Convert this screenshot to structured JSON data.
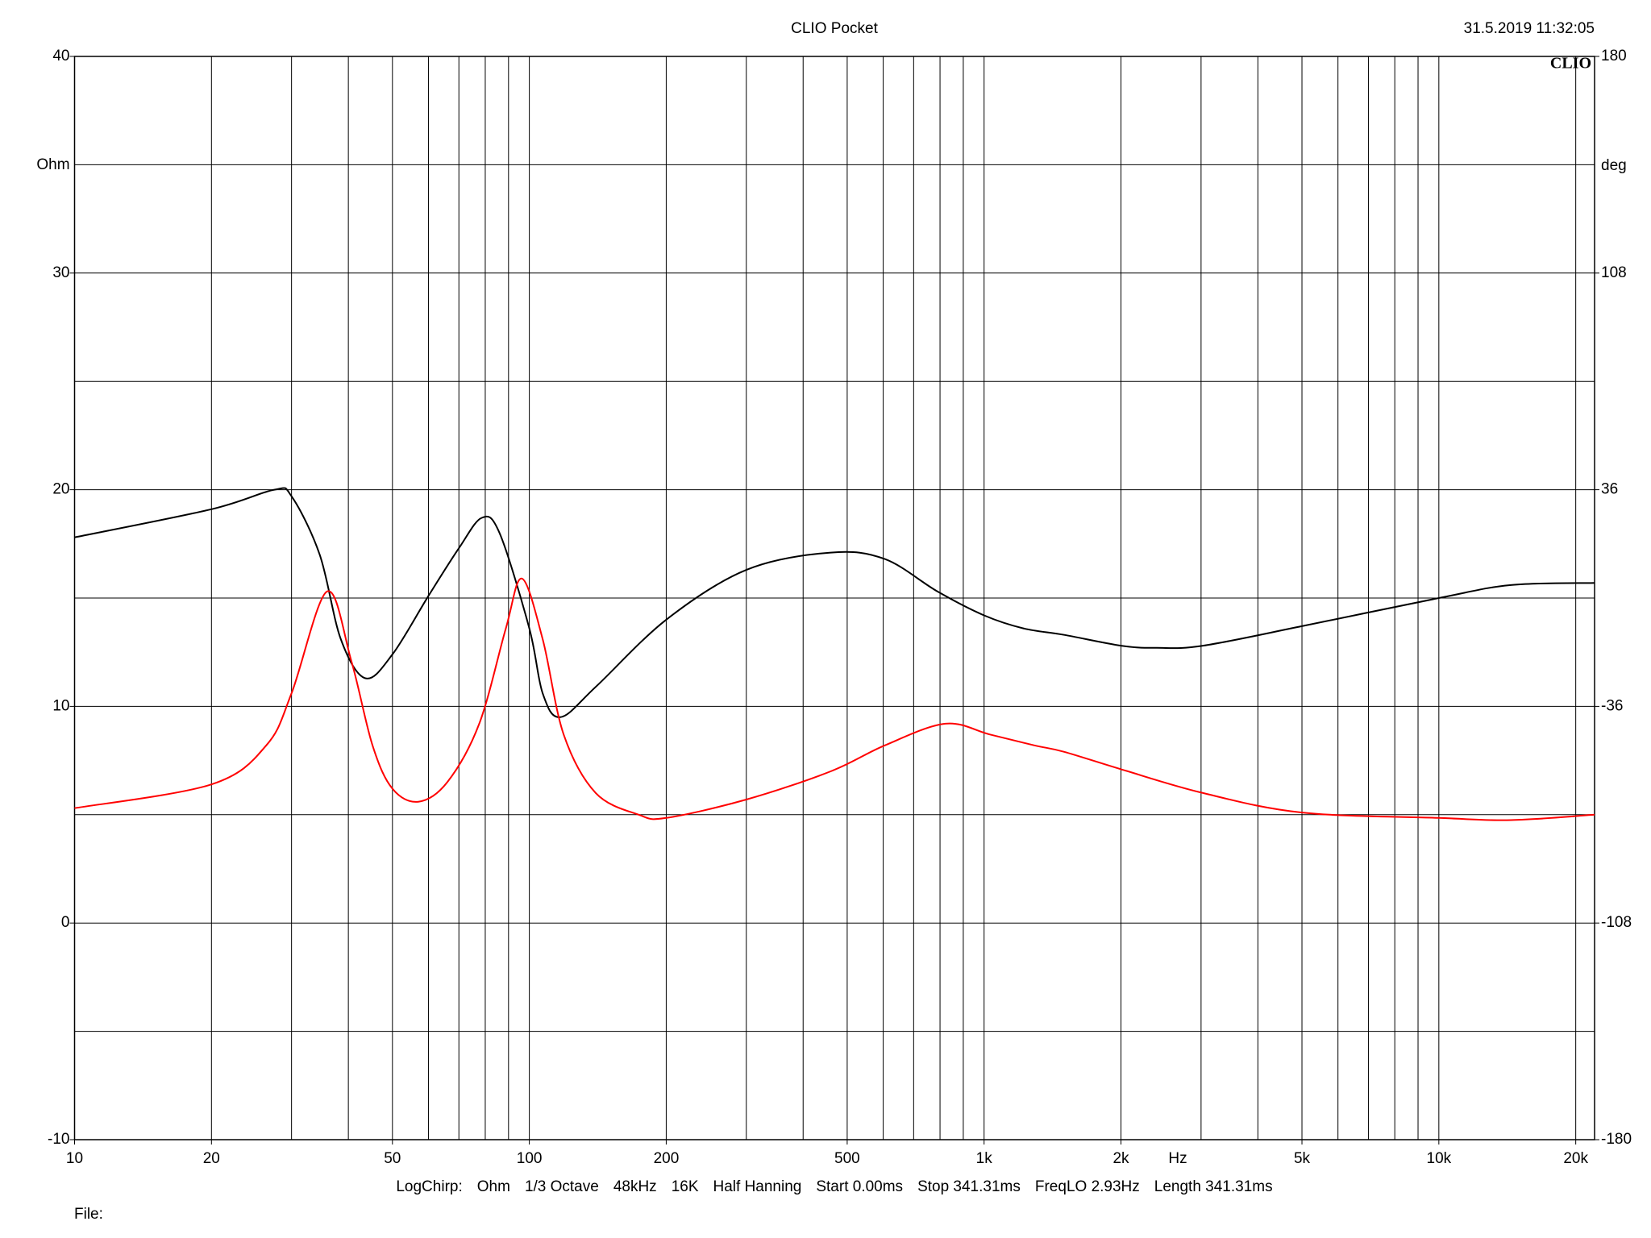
{
  "chart_data": {
    "type": "line",
    "title": "CLIO Pocket",
    "timestamp": "31.5.2019 11:32:05",
    "logo": "CLIO",
    "y_label": "Ohm",
    "y2_label": "deg",
    "x_label": "Hz",
    "xscale": "log",
    "xlim": [
      10,
      22000
    ],
    "xticks": [
      10,
      20,
      50,
      100,
      200,
      500,
      {
        "value": 1000,
        "label": "1k"
      },
      {
        "value": 2000,
        "label": "2k"
      },
      {
        "value": 5000,
        "label": "5k"
      },
      {
        "value": 10000,
        "label": "10k"
      },
      {
        "value": 20000,
        "label": "20k"
      }
    ],
    "xgrid": [
      20,
      30,
      40,
      50,
      60,
      70,
      80,
      90,
      100,
      200,
      300,
      400,
      500,
      600,
      700,
      800,
      900,
      1000,
      2000,
      3000,
      4000,
      5000,
      6000,
      7000,
      8000,
      9000,
      10000,
      20000
    ],
    "ylim": [
      -10,
      40
    ],
    "yticks": [
      -10,
      0,
      10,
      20,
      30,
      40
    ],
    "ygrid": [
      -5,
      0,
      5,
      10,
      15,
      20,
      25,
      30,
      35
    ],
    "y2lim": [
      -180,
      180
    ],
    "y2ticks": [
      180,
      108,
      36,
      -36,
      -108,
      -180
    ],
    "grid": true,
    "series": [
      {
        "color": "#000000",
        "x": [
          10,
          20,
          27.5,
          30,
          34.6,
          38.5,
          43.6,
          50,
          60,
          70,
          78.6,
          86,
          100,
          107,
          117,
          140,
          200,
          300,
          460,
          605,
          790,
          1000,
          1220,
          1500,
          2000,
          2400,
          3030,
          5000,
          10000,
          14400,
          22000
        ],
        "values": [
          17.8,
          19.1,
          20.0,
          19.7,
          17.0,
          13.1,
          11.3,
          12.4,
          15.1,
          17.3,
          18.7,
          18.0,
          13.6,
          10.6,
          9.5,
          10.9,
          14.0,
          16.3,
          17.1,
          16.8,
          15.3,
          14.2,
          13.6,
          13.3,
          12.8,
          12.7,
          12.8,
          13.7,
          15.0,
          15.6,
          15.7
        ]
      },
      {
        "color": "#ff0000",
        "x": [
          10,
          20,
          26.4,
          30,
          35.9,
          40.6,
          45.2,
          50,
          57,
          66,
          77.6,
          88.8,
          96.3,
          107,
          119,
          140,
          174,
          200,
          300,
          460,
          605,
          822,
          1030,
          1290,
          1500,
          2000,
          3030,
          5000,
          10000,
          14400,
          22000
        ],
        "values": [
          5.3,
          6.4,
          8.2,
          10.6,
          15.3,
          12.1,
          8.2,
          6.2,
          5.6,
          6.5,
          9.2,
          13.6,
          15.9,
          13.1,
          8.7,
          6.0,
          5.0,
          4.85,
          5.7,
          7.0,
          8.2,
          9.2,
          8.7,
          8.2,
          7.9,
          7.1,
          6.0,
          5.1,
          4.85,
          4.75,
          5.0
        ]
      }
    ],
    "footer": [
      "LogChirp:",
      "Ohm",
      "1/3 Octave",
      "48kHz",
      "16K",
      "Half Hanning",
      "Start 0.00ms",
      "Stop 341.31ms",
      "FreqLO 2.93Hz",
      "Length 341.31ms"
    ],
    "file_label": "File:"
  }
}
